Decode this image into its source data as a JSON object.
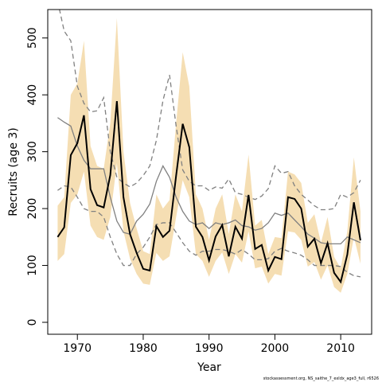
{
  "chart_data": {
    "type": "line",
    "x_label": "Year",
    "y_label": "Recruits (age 3)",
    "source": "stockassessment.org, NS_saithe_7_exldx_age3_full, r6526",
    "xlim": [
      1965.5,
      2014.7
    ],
    "ylim": [
      -21,
      550
    ],
    "xticks": [
      1970,
      1980,
      1990,
      2000,
      2010
    ],
    "yticks": [
      0,
      100,
      200,
      300,
      400,
      500
    ],
    "x": [
      1967,
      1968,
      1969,
      1970,
      1971,
      1972,
      1973,
      1974,
      1975,
      1976,
      1977,
      1978,
      1979,
      1980,
      1981,
      1982,
      1983,
      1984,
      1985,
      1986,
      1987,
      1988,
      1989,
      1990,
      1991,
      1992,
      1993,
      1994,
      1995,
      1996,
      1997,
      1998,
      1999,
      2000,
      2001,
      2002,
      2003,
      2004,
      2005,
      2006,
      2007,
      2008,
      2009,
      2010,
      2011,
      2012,
      2013
    ],
    "band": {
      "color": "#f5deb3",
      "upper": [
        205,
        220,
        400,
        420,
        495,
        310,
        275,
        270,
        350,
        535,
        300,
        210,
        165,
        125,
        120,
        225,
        200,
        215,
        350,
        475,
        415,
        225,
        200,
        145,
        200,
        225,
        155,
        225,
        195,
        295,
        170,
        180,
        120,
        150,
        148,
        265,
        260,
        245,
        175,
        190,
        140,
        185,
        115,
        95,
        160,
        290,
        195
      ],
      "lower": [
        108,
        120,
        210,
        225,
        265,
        170,
        150,
        145,
        185,
        280,
        160,
        112,
        85,
        68,
        66,
        122,
        108,
        116,
        185,
        250,
        220,
        120,
        108,
        80,
        108,
        123,
        85,
        120,
        105,
        160,
        95,
        98,
        68,
        85,
        82,
        160,
        158,
        145,
        98,
        106,
        75,
        100,
        62,
        52,
        85,
        150,
        103
      ]
    },
    "series": [
      {
        "color": "#000000",
        "width": 2,
        "dashed": false,
        "values": [
          150,
          167,
          294,
          315,
          364,
          234,
          206,
          202,
          259,
          389,
          220,
          155,
          122,
          94,
          91,
          169,
          150,
          161,
          258,
          349,
          308,
          168,
          150,
          109,
          151,
          171,
          116,
          168,
          147,
          224,
          129,
          136,
          91,
          115,
          111,
          220,
          217,
          200,
          133,
          147,
          104,
          139,
          87,
          71,
          119,
          211,
          144
        ]
      },
      {
        "color": "#808080",
        "width": 1.3,
        "dashed": false,
        "values": [
          360,
          352,
          345,
          310,
          285,
          270,
          270,
          270,
          220,
          178,
          158,
          155,
          178,
          190,
          208,
          248,
          275,
          255,
          220,
          195,
          178,
          172,
          175,
          165,
          175,
          172,
          175,
          180,
          170,
          168,
          162,
          165,
          175,
          192,
          188,
          192,
          180,
          168,
          155,
          148,
          140,
          138,
          138,
          138,
          150,
          145,
          140
        ]
      },
      {
        "color": "#808080",
        "width": 1.3,
        "dashed": true,
        "values": [
          565,
          512,
          495,
          415,
          385,
          370,
          372,
          395,
          300,
          255,
          245,
          238,
          245,
          258,
          275,
          320,
          390,
          435,
          345,
          268,
          248,
          240,
          240,
          232,
          238,
          236,
          252,
          228,
          225,
          220,
          216,
          222,
          235,
          275,
          262,
          265,
          240,
          225,
          215,
          205,
          198,
          198,
          200,
          225,
          220,
          228,
          250
        ]
      },
      {
        "color": "#808080",
        "width": 1.3,
        "dashed": true,
        "values": [
          232,
          240,
          238,
          220,
          200,
          195,
          195,
          185,
          150,
          120,
          100,
          100,
          120,
          132,
          150,
          172,
          175,
          175,
          158,
          140,
          125,
          118,
          125,
          125,
          128,
          128,
          125,
          120,
          128,
          120,
          110,
          110,
          112,
          125,
          130,
          125,
          122,
          118,
          110,
          100,
          100,
          100,
          100,
          98,
          88,
          82,
          80
        ]
      }
    ]
  }
}
